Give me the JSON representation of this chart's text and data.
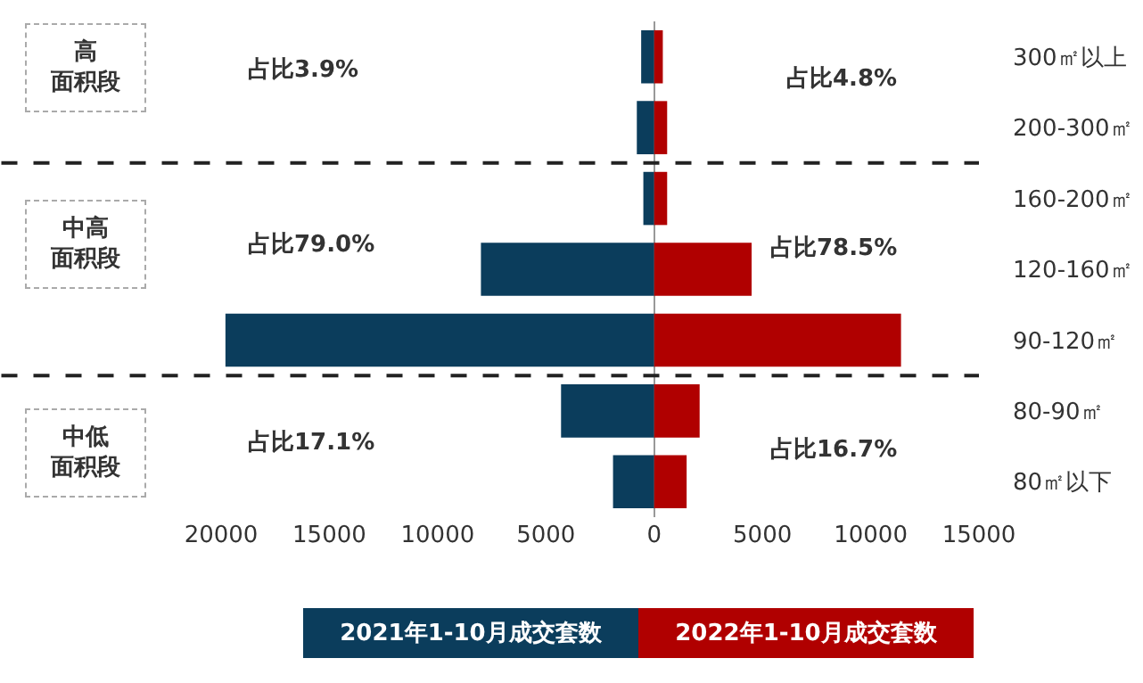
{
  "chart_data": {
    "type": "bar",
    "orientation": "horizontal",
    "stacked": true,
    "categories": [
      "300㎡以上",
      "200-300㎡",
      "160-200㎡",
      "120-160㎡",
      "90-120㎡",
      "80-90㎡",
      "80㎡以下"
    ],
    "series": [
      {
        "name": "2021年1-10月成交套数",
        "color": "#0b3d5c",
        "values": [
          -600,
          -800,
          -500,
          -8000,
          -19800,
          -4300,
          -1900
        ]
      },
      {
        "name": "2022年1-10月成交套数",
        "color": "#b00000",
        "values": [
          400,
          600,
          600,
          4500,
          11400,
          2100,
          1500
        ]
      }
    ],
    "xlim": [
      -20000,
      15000
    ],
    "xticks": [
      {
        "value": -20000,
        "label": "20000"
      },
      {
        "value": -15000,
        "label": "15000"
      },
      {
        "value": -10000,
        "label": "10000"
      },
      {
        "value": -5000,
        "label": "5000"
      },
      0,
      5000,
      10000,
      15000
    ],
    "annotations": [
      "高面积段",
      "中高面积段",
      "中低面积段",
      "占比3.9%",
      "占比79.0%",
      "占比17.1%",
      "占比4.8%",
      "占比78.5%",
      "占比16.7%"
    ],
    "grid": false,
    "legend": "bottom"
  }
}
